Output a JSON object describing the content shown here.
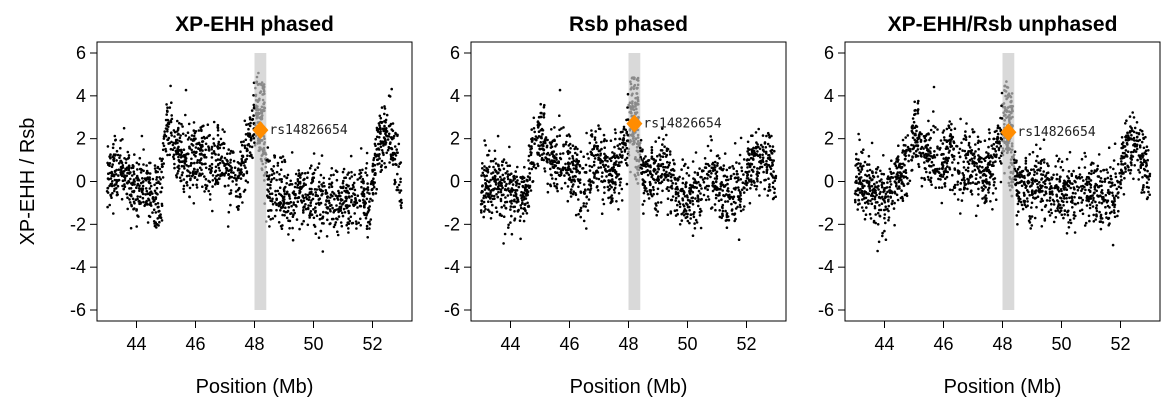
{
  "chart_data": [
    {
      "type": "scatter",
      "title": "XP-EHH phased",
      "xlabel": "Position (Mb)",
      "ylabel": "XP-EHH / Rsb",
      "xlim": [
        43,
        53
      ],
      "ylim": [
        -6,
        6
      ],
      "xticks": [
        "44",
        "46",
        "48",
        "50",
        "52"
      ],
      "yticks": [
        "-6",
        "-4",
        "-2",
        "0",
        "2",
        "4",
        "6"
      ],
      "highlight_region": [
        48.0,
        48.4
      ],
      "highlight_snp": {
        "label": "rs14826654",
        "x": 48.2,
        "y": 2.4
      },
      "series": [
        {
          "x": [
            43.0,
            43.5,
            44.0,
            44.5,
            44.8,
            45.0,
            45.3,
            45.6,
            45.9,
            46.2,
            46.5,
            46.8,
            47.1,
            47.4,
            47.7,
            47.95,
            48.1,
            48.3,
            48.5,
            48.8,
            49.2,
            49.6,
            50.0,
            50.4,
            50.8,
            51.2,
            51.6,
            51.9,
            52.2,
            52.5,
            52.8,
            53.0
          ],
          "y": [
            0.3,
            0.4,
            -0.3,
            -0.6,
            -0.9,
            2.6,
            1.8,
            1.0,
            0.8,
            1.3,
            0.6,
            1.4,
            0.3,
            -0.2,
            1.2,
            2.2,
            3.5,
            0.9,
            -0.2,
            -0.4,
            -0.7,
            -0.6,
            -0.8,
            -0.9,
            -1.0,
            -0.7,
            -0.5,
            -0.8,
            1.9,
            2.4,
            1.2,
            0.0
          ]
        }
      ]
    },
    {
      "type": "scatter",
      "title": "Rsb phased",
      "xlabel": "Position (Mb)",
      "ylabel": "",
      "xlim": [
        43,
        53
      ],
      "ylim": [
        -6,
        6
      ],
      "xticks": [
        "44",
        "46",
        "48",
        "50",
        "52"
      ],
      "yticks": [
        "-6",
        "-4",
        "-2",
        "0",
        "2",
        "4",
        "6"
      ],
      "highlight_region": [
        48.0,
        48.4
      ],
      "highlight_snp": {
        "label": "rs14826654",
        "x": 48.2,
        "y": 2.7
      },
      "series": [
        {
          "x": [
            43.0,
            43.5,
            44.0,
            44.5,
            44.8,
            45.0,
            45.3,
            45.6,
            45.9,
            46.2,
            46.5,
            46.8,
            47.1,
            47.4,
            47.7,
            47.95,
            48.1,
            48.3,
            48.5,
            48.8,
            49.2,
            49.6,
            50.0,
            50.4,
            50.8,
            51.2,
            51.6,
            51.9,
            52.2,
            52.5,
            52.8,
            53.0
          ],
          "y": [
            -0.3,
            0.0,
            -0.5,
            -0.8,
            1.6,
            2.4,
            1.3,
            0.9,
            1.1,
            0.2,
            -0.4,
            1.2,
            0.9,
            0.3,
            1.0,
            1.6,
            3.2,
            1.1,
            0.4,
            0.2,
            0.8,
            -0.2,
            -0.8,
            -0.7,
            0.4,
            -0.6,
            -0.3,
            0.1,
            0.9,
            1.0,
            1.1,
            0.3
          ]
        }
      ]
    },
    {
      "type": "scatter",
      "title": "XP-EHH/Rsb unphased",
      "xlabel": "Position (Mb)",
      "ylabel": "",
      "xlim": [
        43,
        53
      ],
      "ylim": [
        -6,
        6
      ],
      "xticks": [
        "44",
        "46",
        "48",
        "50",
        "52"
      ],
      "yticks": [
        "-6",
        "-4",
        "-2",
        "0",
        "2",
        "4",
        "6"
      ],
      "highlight_region": [
        48.0,
        48.4
      ],
      "highlight_snp": {
        "label": "rs14826654",
        "x": 48.2,
        "y": 2.3
      },
      "series": [
        {
          "x": [
            43.0,
            43.5,
            44.0,
            44.5,
            44.8,
            45.0,
            45.3,
            45.6,
            45.9,
            46.2,
            46.5,
            46.8,
            47.1,
            47.4,
            47.7,
            47.95,
            48.1,
            48.3,
            48.5,
            48.8,
            49.2,
            49.6,
            50.0,
            50.4,
            50.8,
            51.2,
            51.6,
            51.9,
            52.2,
            52.5,
            52.8,
            53.0
          ],
          "y": [
            0.2,
            -0.3,
            -0.9,
            0.3,
            0.7,
            2.5,
            1.6,
            1.2,
            0.8,
            1.4,
            0.6,
            0.9,
            0.8,
            0.3,
            1.0,
            1.7,
            3.1,
            0.5,
            -0.1,
            -0.3,
            0.0,
            -0.2,
            -0.5,
            -0.8,
            -0.4,
            -0.6,
            -0.5,
            -0.2,
            1.6,
            1.8,
            1.0,
            0.4
          ]
        }
      ]
    }
  ]
}
